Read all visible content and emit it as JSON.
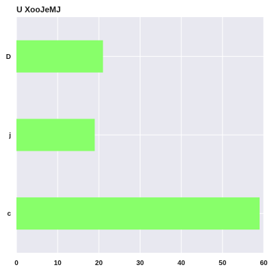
{
  "chart_data": {
    "type": "bar",
    "orientation": "horizontal",
    "title": "U XooJeMJ",
    "xlabel": "",
    "ylabel": "",
    "categories": [
      "D",
      "j",
      "c"
    ],
    "values": [
      21,
      19,
      59
    ],
    "xlim": [
      0,
      60
    ],
    "xticks": [
      0,
      10,
      20,
      30,
      40,
      50,
      60
    ],
    "grid": true,
    "colors": {
      "bar": "#88ff6a",
      "plot_background": "#e8e8f0",
      "grid": "#ffffff"
    }
  }
}
